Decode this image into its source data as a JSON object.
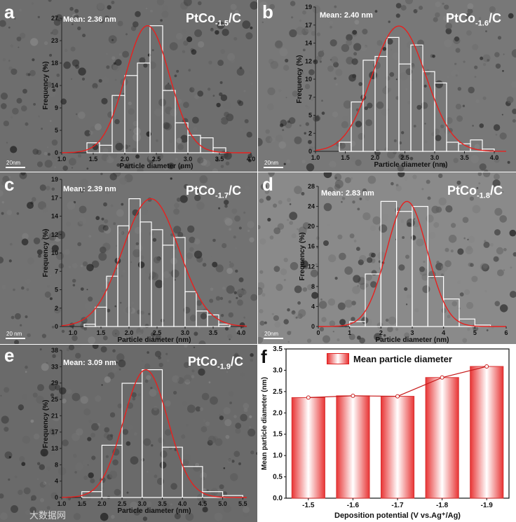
{
  "panels": [
    {
      "label": "a",
      "mean_label": "Mean: 2.36 nm",
      "sample": {
        "main": "PtCo",
        "sub": "-1.5",
        "tail": "/C"
      },
      "scale_label": "20nm"
    },
    {
      "label": "b",
      "mean_label": "Mean: 2.40 nm",
      "sample": {
        "main": "PtCo",
        "sub": "-1.6",
        "tail": "/C"
      },
      "scale_label": "20nm"
    },
    {
      "label": "c",
      "mean_label": "Mean: 2.39 nm",
      "sample": {
        "main": "PtCo",
        "sub": "-1.7",
        "tail": "/C"
      },
      "scale_label": "20 nm"
    },
    {
      "label": "d",
      "mean_label": "Mean: 2.83 nm",
      "sample": {
        "main": "PtCo",
        "sub": "-1.8",
        "tail": "/C"
      },
      "scale_label": "20nm"
    },
    {
      "label": "e",
      "mean_label": "Mean: 3.09 nm",
      "sample": {
        "main": "PtCo",
        "sub": "-1.9",
        "tail": "/C"
      },
      "scale_label": "20nm"
    },
    {
      "label": "f"
    }
  ],
  "watermark": "大数据网",
  "colors": {
    "fit_curve": "#e8201e",
    "bar_red": "#e83535",
    "hist_outline": "#ffffff",
    "axis_text": "#111111"
  },
  "chart_data": [
    {
      "type": "bar",
      "panel": "a",
      "xlabel": "Particle diameter (nm)",
      "ylabel": "Frequency (%)",
      "xlim": [
        1.0,
        4.0
      ],
      "xticks": [
        "1.0",
        "1.5",
        "2.0",
        "2.5",
        "3.0",
        "3.5",
        "4.0"
      ],
      "ylim": [
        0,
        27
      ],
      "yticks": [
        "0",
        "5",
        "9",
        "14",
        "18",
        "23",
        "27"
      ],
      "bin_edges": [
        1.4,
        1.6,
        1.8,
        2.0,
        2.2,
        2.4,
        2.6,
        2.8,
        3.0,
        3.2,
        3.4,
        3.6
      ],
      "values": [
        2.0,
        1.5,
        11.5,
        15.5,
        18.0,
        25.5,
        12.5,
        6.0,
        3.5,
        3.0,
        1.0
      ],
      "fit": {
        "mean": 2.36,
        "sigma": 0.35,
        "peak": 25.5
      }
    },
    {
      "type": "bar",
      "panel": "b",
      "xlabel": "Particle diameter (nm)",
      "ylabel": "Frequency (%)",
      "xlim": [
        1.0,
        4.2
      ],
      "xticks": [
        "1.0",
        "1.5",
        "2.0",
        "2.5",
        "3.0",
        "3.5",
        "4.0"
      ],
      "ylim": [
        0,
        19
      ],
      "yticks": [
        "0",
        "2",
        "5",
        "7",
        "10",
        "12",
        "14",
        "17",
        "19"
      ],
      "bin_edges": [
        1.4,
        1.6,
        1.8,
        2.0,
        2.2,
        2.4,
        2.6,
        2.8,
        3.0,
        3.2,
        3.4,
        3.6,
        3.8,
        4.0
      ],
      "values": [
        1.2,
        6.5,
        12.0,
        12.5,
        15.0,
        11.5,
        14.0,
        10.5,
        9.0,
        1.2,
        1.0,
        1.5,
        0.3
      ],
      "fit": {
        "mean": 2.4,
        "sigma": 0.45,
        "peak": 16.5
      }
    },
    {
      "type": "bar",
      "panel": "c",
      "xlabel": "Particle diameter (nm)",
      "ylabel": "Frequency (%)",
      "xlim": [
        0.8,
        4.1
      ],
      "xticks": [
        "1.0",
        "1.5",
        "2.0",
        "2.5",
        "3.0",
        "3.5",
        "4.0"
      ],
      "ylim": [
        0,
        19
      ],
      "yticks": [
        "0",
        "2",
        "5",
        "7",
        "10",
        "12",
        "14",
        "17",
        "19"
      ],
      "bin_edges": [
        1.2,
        1.4,
        1.6,
        1.8,
        2.0,
        2.2,
        2.4,
        2.6,
        2.8,
        3.0,
        3.2,
        3.4,
        3.6,
        3.8
      ],
      "values": [
        0.3,
        2.5,
        6.5,
        13.0,
        16.5,
        13.5,
        12.5,
        10.5,
        11.5,
        4.5,
        2.0,
        1.5,
        0.3
      ],
      "fit": {
        "mean": 2.39,
        "sigma": 0.5,
        "peak": 16.5
      }
    },
    {
      "type": "bar",
      "panel": "d",
      "xlabel": "Particle diameter (nm)",
      "ylabel": "Frequency (%)",
      "xlim": [
        0,
        6
      ],
      "xticks": [
        "0",
        "1",
        "2",
        "3",
        "4",
        "5",
        "6"
      ],
      "ylim": [
        0,
        28
      ],
      "yticks": [
        "0",
        "4",
        "8",
        "12",
        "16",
        "20",
        "24",
        "28"
      ],
      "bin_edges": [
        1.0,
        1.5,
        2.0,
        2.5,
        3.0,
        3.5,
        4.0,
        4.5,
        5.0,
        5.5
      ],
      "values": [
        1.0,
        10.5,
        25.0,
        23.0,
        24.0,
        10.0,
        5.5,
        1.5,
        0.3
      ],
      "fit": {
        "mean": 2.83,
        "sigma": 0.65,
        "peak": 25.0
      }
    },
    {
      "type": "bar",
      "panel": "e",
      "xlabel": "Particle diameter (nm)",
      "ylabel": "Frequency (%)",
      "xlim": [
        1.0,
        5.6
      ],
      "xticks": [
        "1.0",
        "1.5",
        "2.0",
        "2.5",
        "3.0",
        "3.5",
        "4.0",
        "4.5",
        "5.0",
        "5.5"
      ],
      "ylim": [
        0,
        38
      ],
      "yticks": [
        "0",
        "4",
        "8",
        "13",
        "17",
        "21",
        "25",
        "29",
        "33",
        "38"
      ],
      "bin_edges": [
        1.5,
        2.0,
        2.5,
        3.0,
        3.5,
        4.0,
        4.5,
        5.0,
        5.5
      ],
      "values": [
        1.5,
        13.5,
        29.5,
        33.0,
        13.0,
        8.0,
        1.5,
        0.5
      ],
      "fit": {
        "mean": 3.09,
        "sigma": 0.55,
        "peak": 33.0
      }
    },
    {
      "type": "bar",
      "panel": "f",
      "xlabel": "Deposition potential (V vs.Ag⁺/Ag)",
      "ylabel": "Mean particle diameter (nm)",
      "legend": "Mean particle diameter",
      "legend_position": "top-left",
      "categories": [
        "-1.5",
        "-1.6",
        "-1.7",
        "-1.8",
        "-1.9"
      ],
      "values": [
        2.36,
        2.4,
        2.39,
        2.83,
        3.09
      ],
      "ylim": [
        0,
        3.5
      ],
      "yticks": [
        "0.0",
        "0.5",
        "1.0",
        "1.5",
        "2.0",
        "2.5",
        "3.0",
        "3.5"
      ]
    }
  ]
}
